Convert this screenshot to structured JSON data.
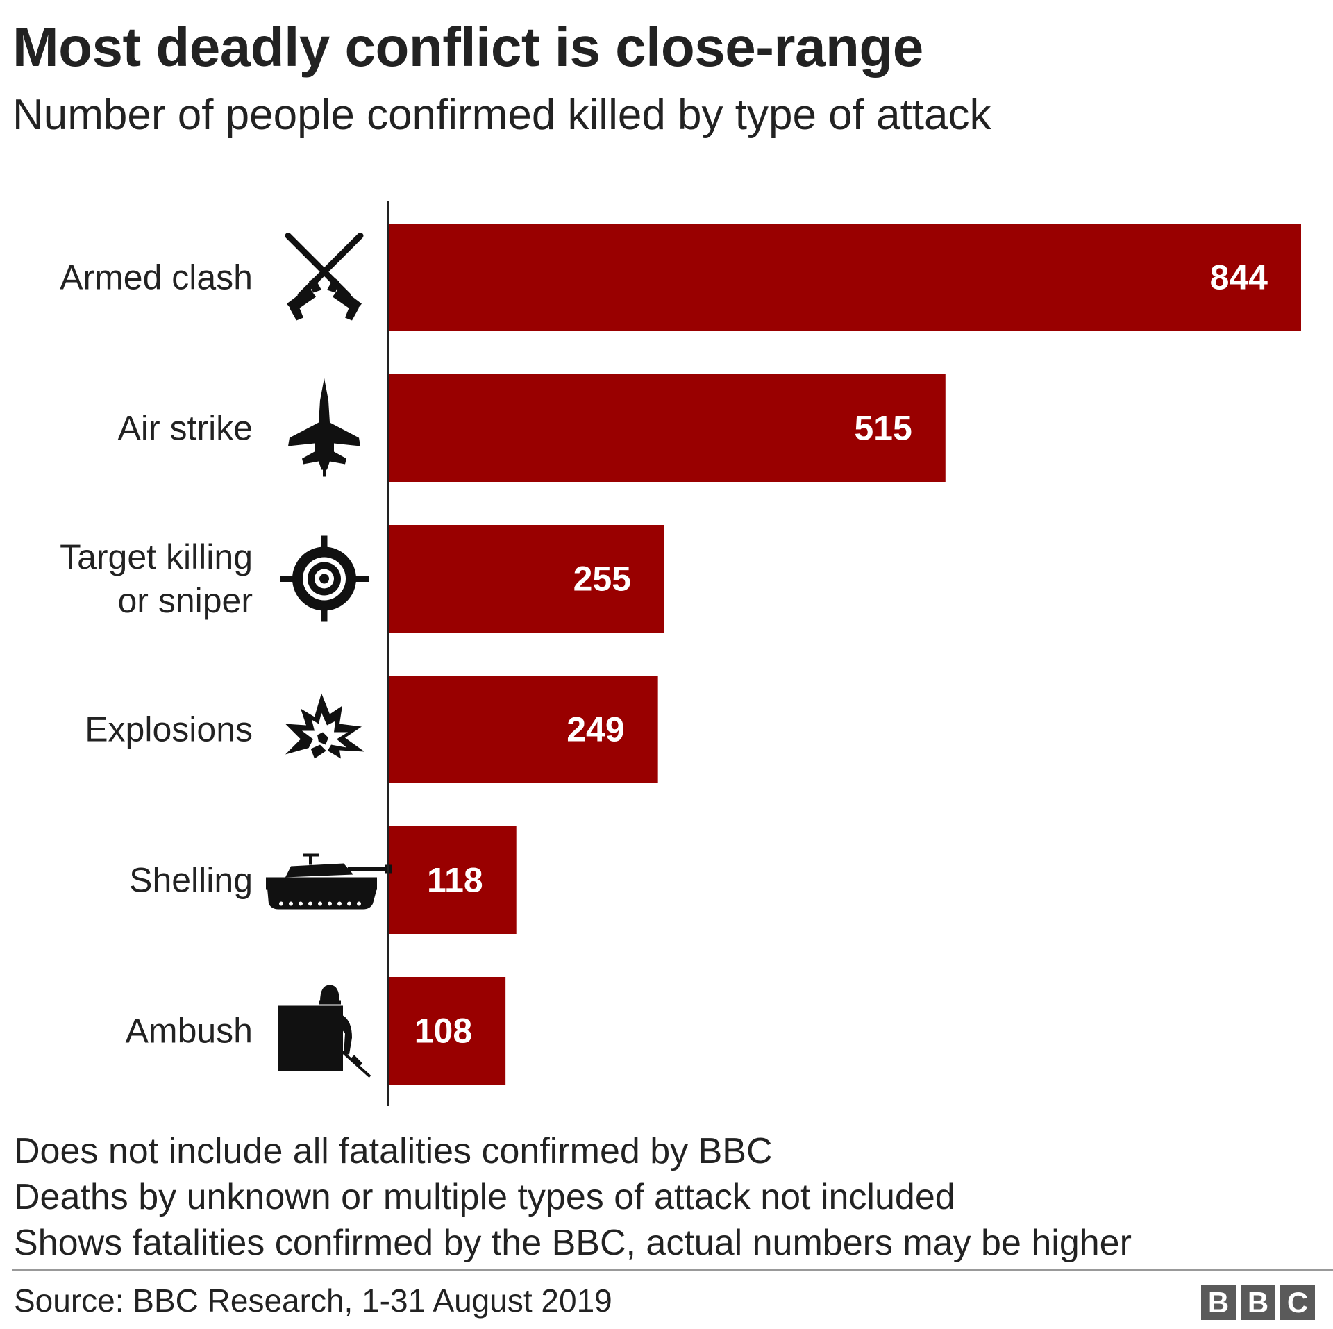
{
  "title": "Most deadly conflict is close-range",
  "subtitle": "Number of people confirmed killed by type of attack",
  "chart_data": {
    "type": "bar",
    "orientation": "horizontal",
    "categories": [
      "Armed clash",
      "Air strike",
      "Target killing or sniper",
      "Explosions",
      "Shelling",
      "Ambush"
    ],
    "category_lines": [
      [
        "Armed clash"
      ],
      [
        "Air strike"
      ],
      [
        "Target killing",
        "or sniper"
      ],
      [
        "Explosions"
      ],
      [
        "Shelling"
      ],
      [
        "Ambush"
      ]
    ],
    "icons": [
      "crossed-rifles-icon",
      "fighter-jet-icon",
      "crosshair-icon",
      "explosion-icon",
      "tank-icon",
      "ambush-soldier-icon"
    ],
    "values": [
      844,
      515,
      255,
      249,
      118,
      108
    ],
    "data_labels": [
      "844",
      "515",
      "255",
      "249",
      "118",
      "108"
    ],
    "bar_color": "#990000",
    "label_color": "#ffffff",
    "xlim": [
      0,
      844
    ],
    "grid": false,
    "legend": "none"
  },
  "notes": [
    "Does not include all fatalities confirmed by BBC",
    "Deaths by unknown or multiple types of attack not included",
    "Shows fatalities confirmed by the BBC, actual numbers may be higher"
  ],
  "source": "Source: BBC Research, 1-31 August 2019",
  "logo": [
    "B",
    "B",
    "C"
  ]
}
